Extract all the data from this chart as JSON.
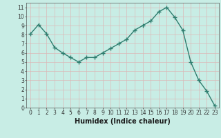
{
  "x": [
    0,
    1,
    2,
    3,
    4,
    5,
    6,
    7,
    8,
    9,
    10,
    11,
    12,
    13,
    14,
    15,
    16,
    17,
    18,
    19,
    20,
    21,
    22,
    23
  ],
  "y": [
    8.1,
    9.1,
    8.1,
    6.6,
    6.0,
    5.5,
    5.0,
    5.5,
    5.5,
    6.0,
    6.5,
    7.0,
    7.5,
    8.5,
    9.0,
    9.5,
    10.5,
    11.0,
    9.9,
    8.5,
    5.0,
    3.0,
    1.8,
    0.2
  ],
  "line_color": "#2e7d6e",
  "bg_color": "#c8ede5",
  "grid_color": "#dbb8b8",
  "xlabel": "Humidex (Indice chaleur)",
  "xlim": [
    -0.5,
    23.5
  ],
  "ylim": [
    0,
    11.5
  ],
  "xticks": [
    0,
    1,
    2,
    3,
    4,
    5,
    6,
    7,
    8,
    9,
    10,
    11,
    12,
    13,
    14,
    15,
    16,
    17,
    18,
    19,
    20,
    21,
    22,
    23
  ],
  "yticks": [
    0,
    1,
    2,
    3,
    4,
    5,
    6,
    7,
    8,
    9,
    10,
    11
  ],
  "marker": "+",
  "markersize": 4,
  "markeredgewidth": 1.0,
  "linewidth": 1.0,
  "xlabel_fontsize": 7,
  "tick_fontsize": 5.5
}
